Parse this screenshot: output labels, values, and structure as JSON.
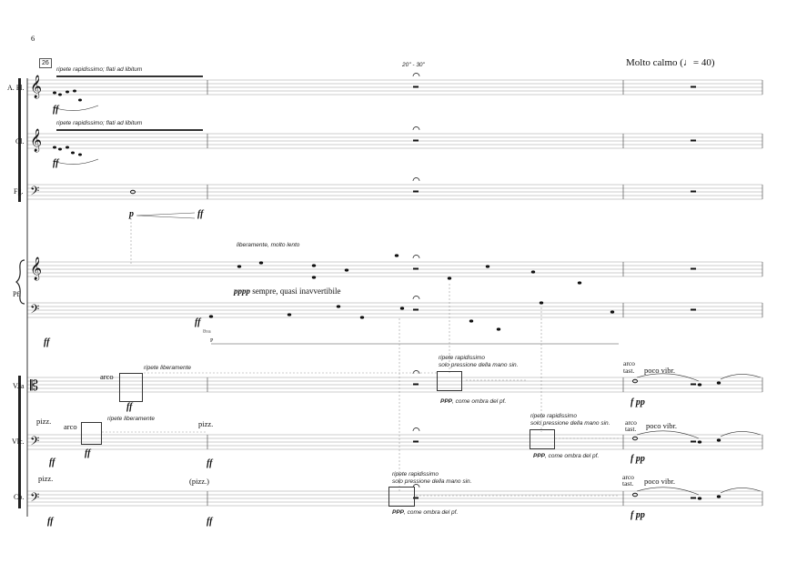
{
  "page_number": "6",
  "rehearsal_mark": "26",
  "tempo": "Molto calmo  (♩= 40)",
  "duration": "20\" - 30\"",
  "instruments": [
    "A. Fl.",
    "Cl.",
    "Fg.",
    "Pf.",
    "V.la",
    "Vlc.",
    "Cb."
  ],
  "winds": {
    "afl_direction": "ripete rapidissimo; flati ad libitum",
    "cl_direction": "ripete rapidissimo; flati ad libitum",
    "afl_dyn": "ff",
    "cl_dyn": "ff",
    "fg_dyn_start": "p",
    "fg_dyn_end": "ff"
  },
  "piano": {
    "direction": "liberamente, molto lento",
    "dynamic_text": "pppp",
    "expression": "sempre, quasi inavvertibile",
    "bass_dyn": "ff",
    "ottava": "8va",
    "ped": "P"
  },
  "strings": {
    "vla": {
      "arco": "arco",
      "direction": "ripete liberamente",
      "dyn": "ff",
      "rep1": "ripete rapidissimo",
      "rep2": "solo pressione della mano sin.",
      "ppp": "PPP",
      "shadow": ", come ombra del pf.",
      "arco2": "arco",
      "tast": "tast.",
      "vibr": "poco vibr.",
      "fpp": "f pp"
    },
    "vlc": {
      "pizz": "pizz.",
      "arco": "arco",
      "direction": "ripete liberamente",
      "dyn1": "ff",
      "dyn2": "ff",
      "pizz2": "pizz.",
      "dyn3": "ff",
      "rep1": "ripete rapidissimo",
      "rep2": "solo pressione della mano sin.",
      "ppp": "PPP",
      "shadow": ", come ombra del pf.",
      "arco2": "arco",
      "tast": "tast.",
      "vibr": "poco vibr.",
      "fpp": "f pp"
    },
    "cb": {
      "pizz": "pizz.",
      "pizz2": "(pizz.)",
      "dyn1": "ff",
      "dyn2": "ff",
      "rep1": "ripete rapidissimo",
      "rep2": "solo pressione della mano sin.",
      "ppp": "PPP",
      "shadow": ", come ombra del pf.",
      "arco2": "arco",
      "tast": "tast.",
      "vibr": "poco vibr.",
      "fpp": "f pp"
    }
  }
}
